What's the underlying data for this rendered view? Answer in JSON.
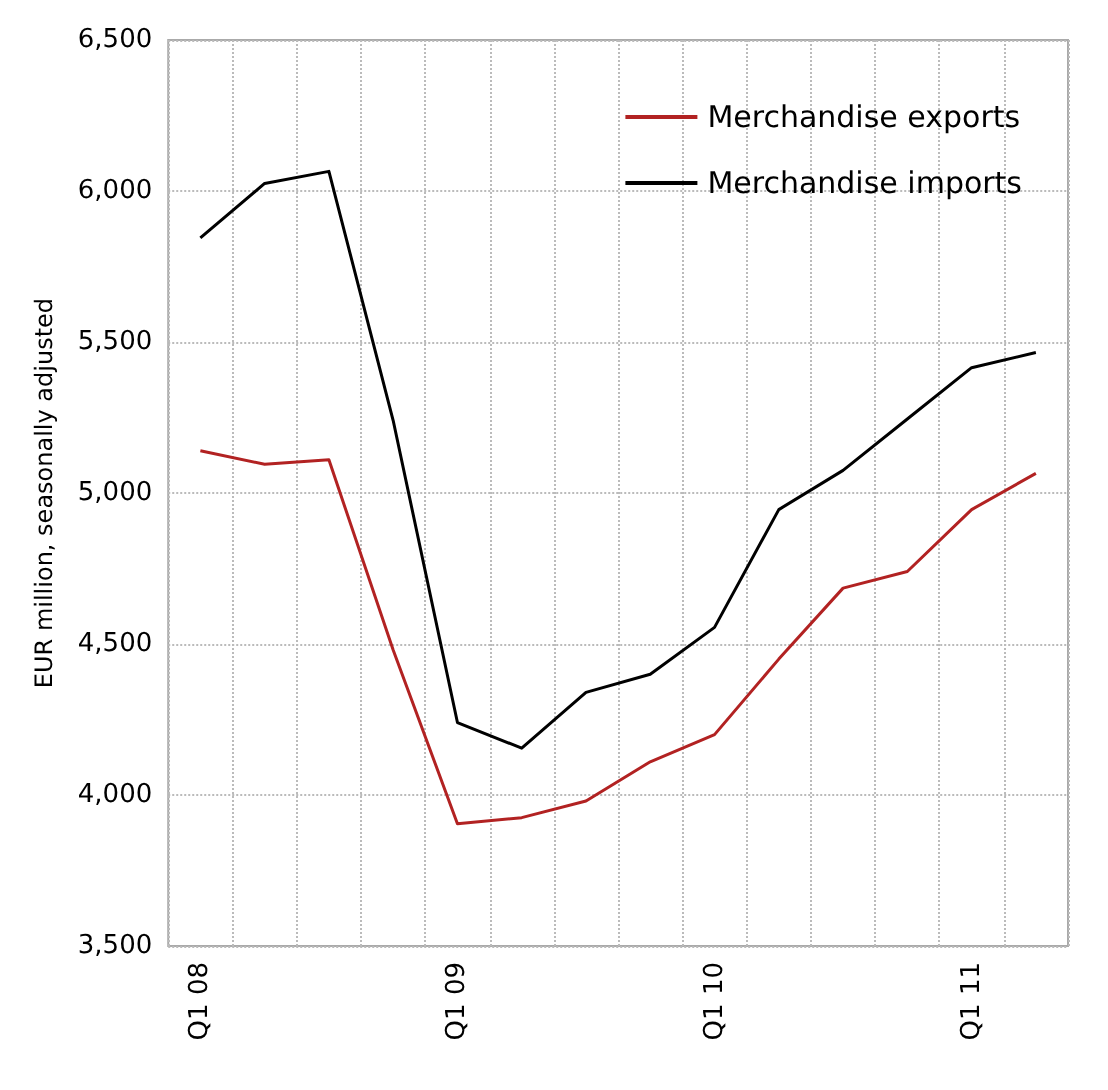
{
  "chart_data": {
    "type": "line",
    "ylabel": "EUR million, seasonally adjusted",
    "categories": [
      "Q1 08",
      null,
      null,
      null,
      "Q1 09",
      null,
      null,
      null,
      "Q1 10",
      null,
      null,
      null,
      "Q1 11",
      null
    ],
    "series": [
      {
        "name": "Merchandise exports",
        "color": "#b22222",
        "values": [
          5140,
          5095,
          5110,
          4480,
          3905,
          3925,
          3980,
          4110,
          4200,
          4450,
          4685,
          4740,
          4945,
          5065
        ]
      },
      {
        "name": "Merchandise imports",
        "color": "#000000",
        "values": [
          5845,
          6025,
          6065,
          5240,
          4240,
          4155,
          4340,
          4400,
          4555,
          4945,
          5075,
          5245,
          5415,
          5465
        ]
      }
    ],
    "ylim": [
      3500,
      6500
    ],
    "yticks": [
      {
        "value": 3500,
        "label": "3,500"
      },
      {
        "value": 4000,
        "label": "4,000"
      },
      {
        "value": 4500,
        "label": "4,500"
      },
      {
        "value": 5000,
        "label": "5,000"
      },
      {
        "value": 5500,
        "label": "5,500"
      },
      {
        "value": 6000,
        "label": "6,000"
      },
      {
        "value": 6500,
        "label": "6,500"
      }
    ],
    "grid": true,
    "legend": "top right",
    "marker": "none",
    "line_style": "solid"
  }
}
